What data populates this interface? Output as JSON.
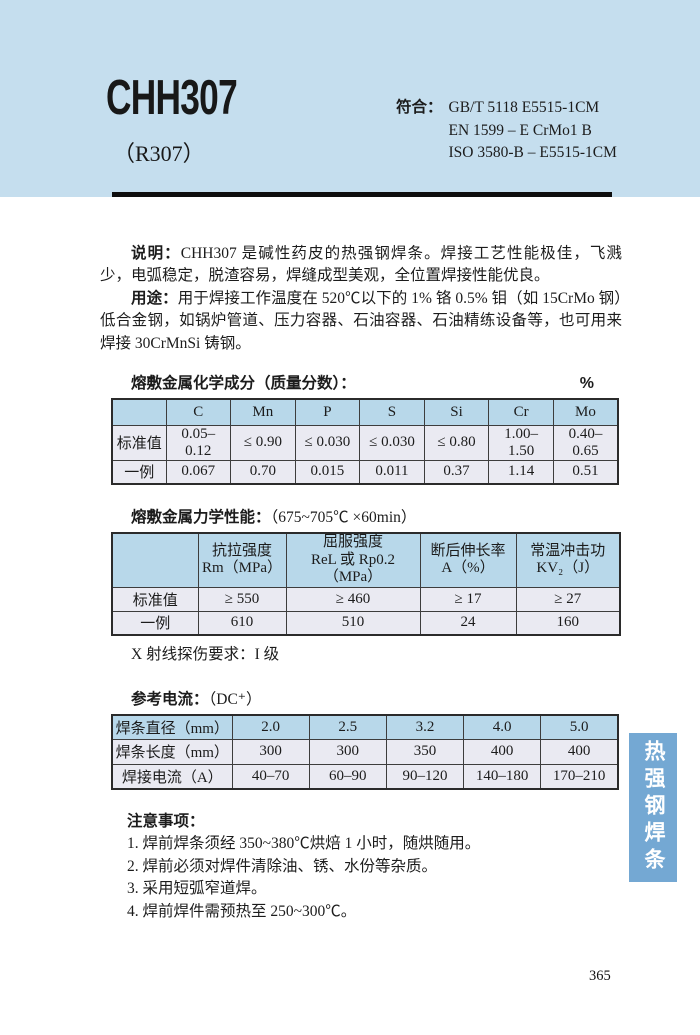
{
  "header": {
    "product_name": "CHH307",
    "product_alias": "（R307）",
    "standards_label": "符合：",
    "standards": [
      "GB/T 5118 E5515-1CM",
      "EN 1599 – E CrMo1 B",
      "ISO 3580-B – E5515-1CM"
    ]
  },
  "description": {
    "paragraphs": [
      {
        "label": "说明：",
        "text": "CHH307 是碱性药皮的热强钢焊条。焊接工艺性能极佳，飞溅少，电弧稳定，脱渣容易，焊缝成型美观，全位置焊接性能优良。"
      },
      {
        "label": "用途：",
        "text": "用于焊接工作温度在 520℃以下的 1% 铬 0.5% 钼（如 15CrMo 钢）低合金钢，如锅炉管道、压力容器、石油容器、石油精练设备等，也可用来焊接 30CrMnSi 铸钢。"
      }
    ]
  },
  "sections": {
    "chemistry": {
      "title": "熔敷金属化学成分（质量分数）：",
      "unit": "%",
      "table": {
        "header": [
          "",
          "C",
          "Mn",
          "P",
          "S",
          "Si",
          "Cr",
          "Mo"
        ],
        "rows": [
          [
            "标准值",
            "0.05–0.12",
            "≤ 0.90",
            "≤ 0.030",
            "≤ 0.030",
            "≤ 0.80",
            "1.00–1.50",
            "0.40–0.65"
          ],
          [
            "一例",
            "0.067",
            "0.70",
            "0.015",
            "0.011",
            "0.37",
            "1.14",
            "0.51"
          ]
        ]
      }
    },
    "mechanical": {
      "title": "熔敷金属力学性能：",
      "title_suffix": "（675~705℃ ×60min）",
      "table": {
        "header": [
          "",
          "抗拉强度\nRm（MPa）",
          "屈服强度\nReL 或 Rp0.2（MPa）",
          "断后伸长率\nA（%）",
          "常温冲击功\nKV₂（J）"
        ],
        "rows": [
          [
            "标准值",
            "≥ 550",
            "≥ 460",
            "≥ 17",
            "≥ 27"
          ],
          [
            "一例",
            "610",
            "510",
            "24",
            "160"
          ]
        ]
      },
      "xray_note": "X 射线探伤要求：I 级"
    },
    "current": {
      "title": "参考电流：",
      "title_suffix": "（DC⁺）",
      "table": {
        "header": [
          "焊条直径（mm）",
          "2.0",
          "2.5",
          "3.2",
          "4.0",
          "5.0"
        ],
        "rows": [
          [
            "焊条长度（mm）",
            "300",
            "300",
            "350",
            "400",
            "400"
          ],
          [
            "焊接电流（A）",
            "40–70",
            "60–90",
            "90–120",
            "140–180",
            "170–210"
          ]
        ]
      }
    }
  },
  "notes": {
    "title": "注意事项：",
    "items": [
      "1. 焊前焊条须经 350~380℃烘焙 1 小时，随烘随用。",
      "2. 焊前必须对焊件清除油、锈、水份等杂质。",
      "3. 采用短弧窄道焊。",
      "4. 焊前焊件需预热至 250~300℃。"
    ]
  },
  "side_tab": {
    "label": "热强钢焊条"
  },
  "page": {
    "number": "365"
  },
  "colors": {
    "header_bg": "#c5deee",
    "tab_bg": "#74a8d3",
    "table_header_bg": "#b8d8ea",
    "table_row_bg": "#eaeaf2"
  }
}
